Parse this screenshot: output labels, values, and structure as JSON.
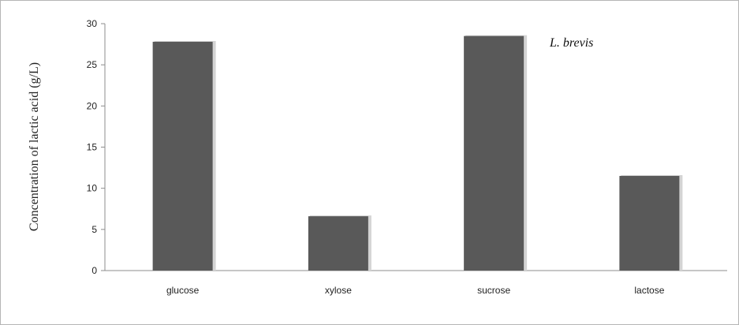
{
  "chart_data": {
    "type": "bar",
    "categories": [
      "glucose",
      "xylose",
      "sucrose",
      "lactose"
    ],
    "values": [
      27.8,
      6.6,
      28.5,
      11.5
    ],
    "title": "",
    "xlabel": "",
    "ylabel": "Concentration of lactic acid (g/L)",
    "ylim": [
      0,
      30
    ],
    "yticks": [
      0,
      5,
      10,
      15,
      20,
      25,
      30
    ],
    "annotation": "L. brevis",
    "grid": false,
    "legend": "none",
    "bar_color": "#595959",
    "bar_shadow_color": "#d4d4d4"
  }
}
